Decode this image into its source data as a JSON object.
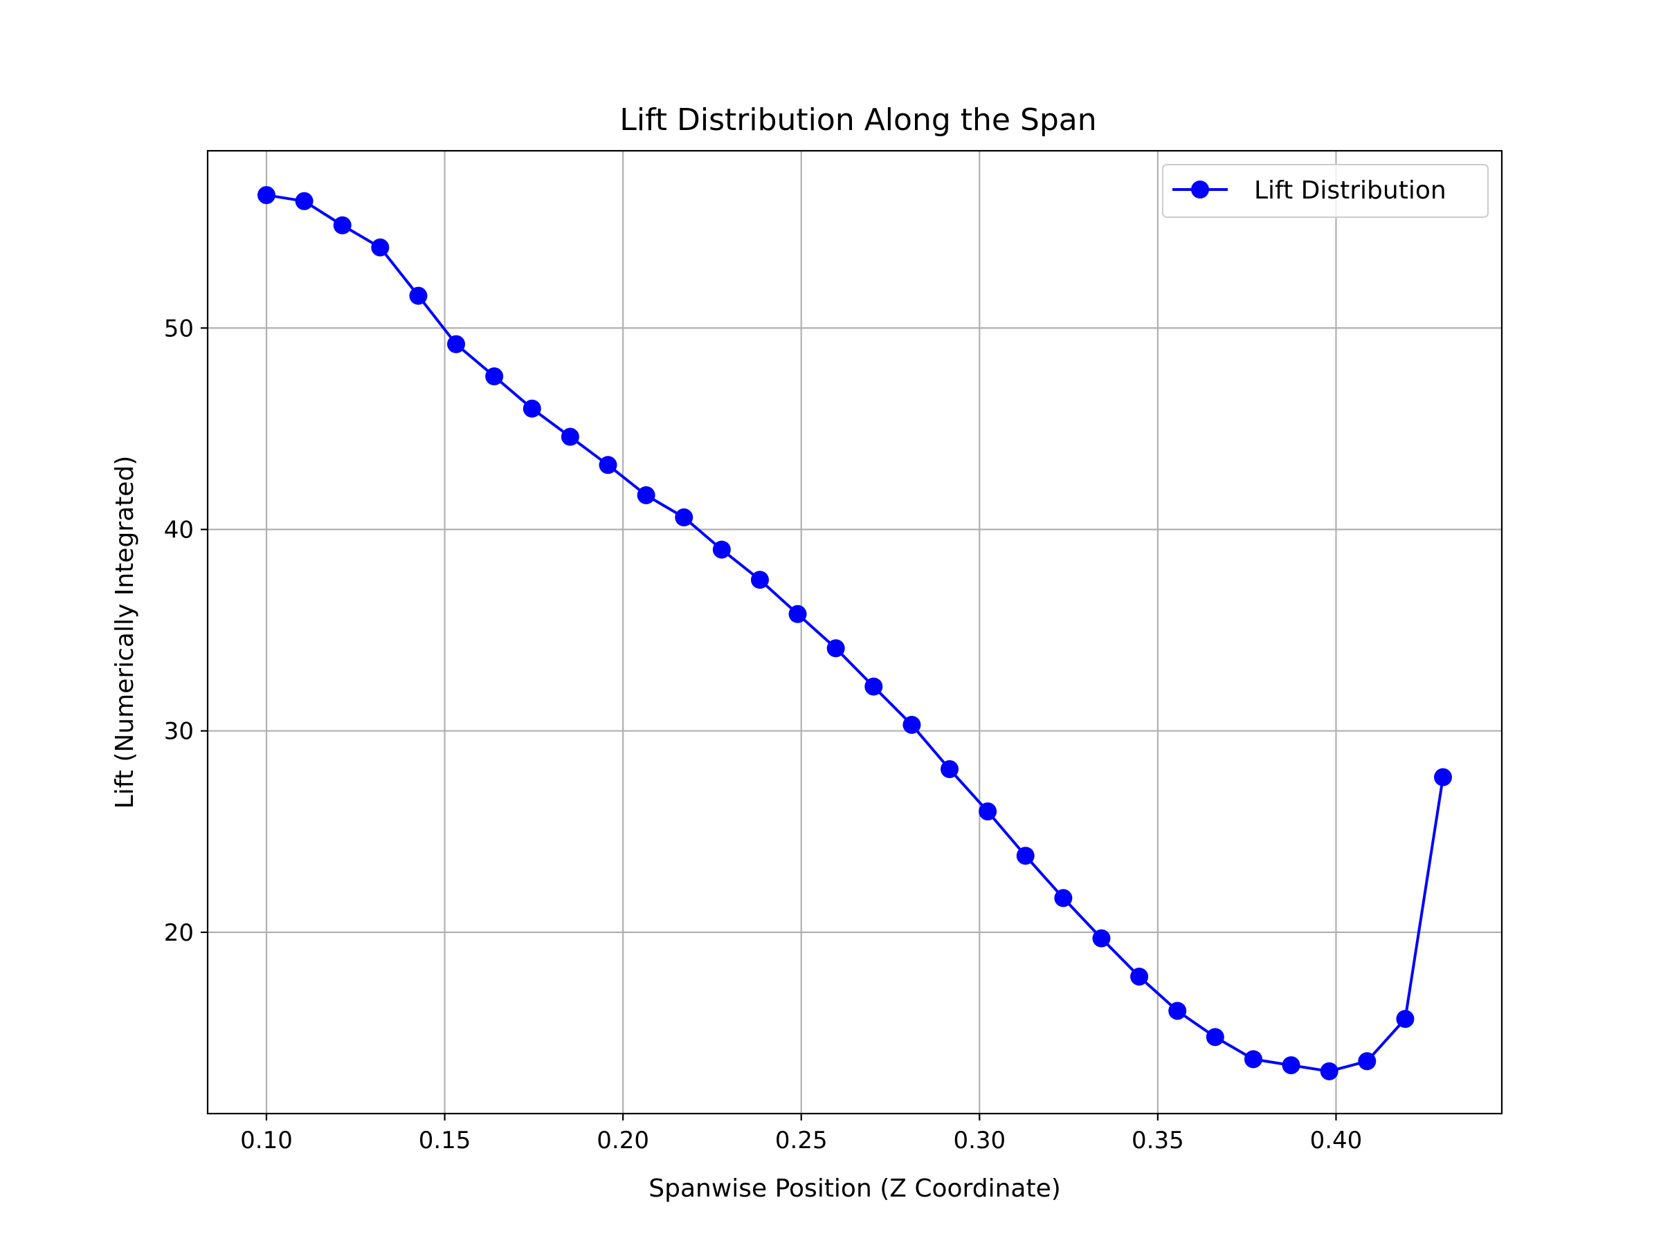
{
  "chart_data": {
    "type": "line",
    "title": "Lift Distribution Along the Span",
    "xlabel": "Spanwise Position (Z Coordinate)",
    "ylabel": "Lift (Numerically Integrated)",
    "xlim": [
      0.0835,
      0.4465
    ],
    "ylim": [
      11.0,
      58.8
    ],
    "xticks": [
      0.1,
      0.15,
      0.2,
      0.25,
      0.3,
      0.35,
      0.4
    ],
    "xtick_labels": [
      "0.10",
      "0.15",
      "0.20",
      "0.25",
      "0.30",
      "0.35",
      "0.40"
    ],
    "yticks": [
      20,
      30,
      40,
      50
    ],
    "ytick_labels": [
      "20",
      "30",
      "40",
      "50"
    ],
    "grid": true,
    "legend_position": "top-right",
    "colors": {
      "series": "#0000ff",
      "grid": "#b0b0b0"
    },
    "series": [
      {
        "name": "Lift Distribution",
        "marker": "circle",
        "x": [
          0.1,
          0.1106,
          0.1213,
          0.1319,
          0.1426,
          0.1532,
          0.1639,
          0.1745,
          0.1852,
          0.1958,
          0.2065,
          0.2171,
          0.2277,
          0.2384,
          0.249,
          0.2597,
          0.2703,
          0.281,
          0.2916,
          0.3023,
          0.3129,
          0.3235,
          0.3342,
          0.3448,
          0.3555,
          0.3661,
          0.3768,
          0.3874,
          0.3981,
          0.4087,
          0.4194,
          0.43
        ],
        "y": [
          56.6,
          56.3,
          55.1,
          54.0,
          51.6,
          49.2,
          47.6,
          46.0,
          44.6,
          43.2,
          41.7,
          40.6,
          39.0,
          37.5,
          35.8,
          34.1,
          32.2,
          30.3,
          28.1,
          26.0,
          23.8,
          21.7,
          19.7,
          17.8,
          16.1,
          14.8,
          13.7,
          13.4,
          13.1,
          13.6,
          15.7,
          27.7
        ]
      }
    ]
  }
}
